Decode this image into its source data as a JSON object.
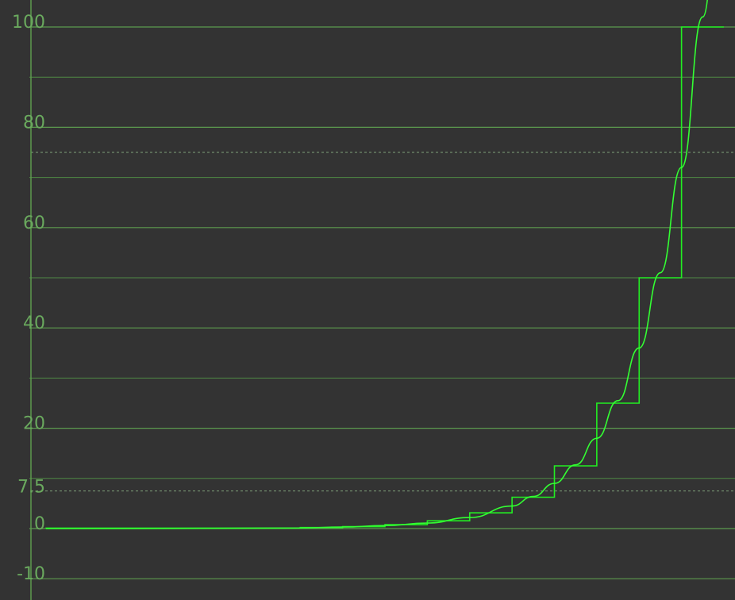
{
  "chart_data": {
    "type": "line",
    "title": "",
    "xlabel": "",
    "ylabel": "",
    "ylim": [
      -10,
      100
    ],
    "xlim": [
      0,
      16
    ],
    "grid": true,
    "y_ticks": [
      {
        "value": 100,
        "label": "100"
      },
      {
        "value": 90,
        "label": ""
      },
      {
        "value": 80,
        "label": "80"
      },
      {
        "value": 70,
        "label": ""
      },
      {
        "value": 60,
        "label": "60"
      },
      {
        "value": 50,
        "label": ""
      },
      {
        "value": 40,
        "label": "40"
      },
      {
        "value": 30,
        "label": ""
      },
      {
        "value": 20,
        "label": "20"
      },
      {
        "value": 10,
        "label": ""
      },
      {
        "value": 0,
        "label": "0"
      },
      {
        "value": -10,
        "label": "-10"
      }
    ],
    "dashed_levels": [
      {
        "value": 75,
        "label": ""
      },
      {
        "value": 7.5,
        "label": "7.5"
      }
    ],
    "series": [
      {
        "kind": "step",
        "color": "#22ee22",
        "x": [
          0,
          6,
          7,
          8,
          9,
          10,
          11,
          12,
          13,
          14,
          15,
          16
        ],
        "values": [
          0,
          0.1,
          0.2,
          0.39,
          0.78,
          1.56,
          3.13,
          6.25,
          12.5,
          25,
          50,
          100
        ]
      },
      {
        "kind": "curve",
        "color": "#33ff33",
        "x": [
          0,
          2,
          4,
          6,
          7,
          8,
          9,
          10,
          11,
          11.5,
          12,
          12.5,
          13,
          13.5,
          14,
          14.5,
          15,
          15.5,
          16
        ],
        "values": [
          0,
          0.01,
          0.05,
          0.12,
          0.3,
          0.6,
          1.1,
          2.2,
          4.5,
          6.4,
          9.0,
          12.7,
          18,
          25.5,
          36,
          51,
          72,
          102,
          145
        ]
      }
    ]
  }
}
